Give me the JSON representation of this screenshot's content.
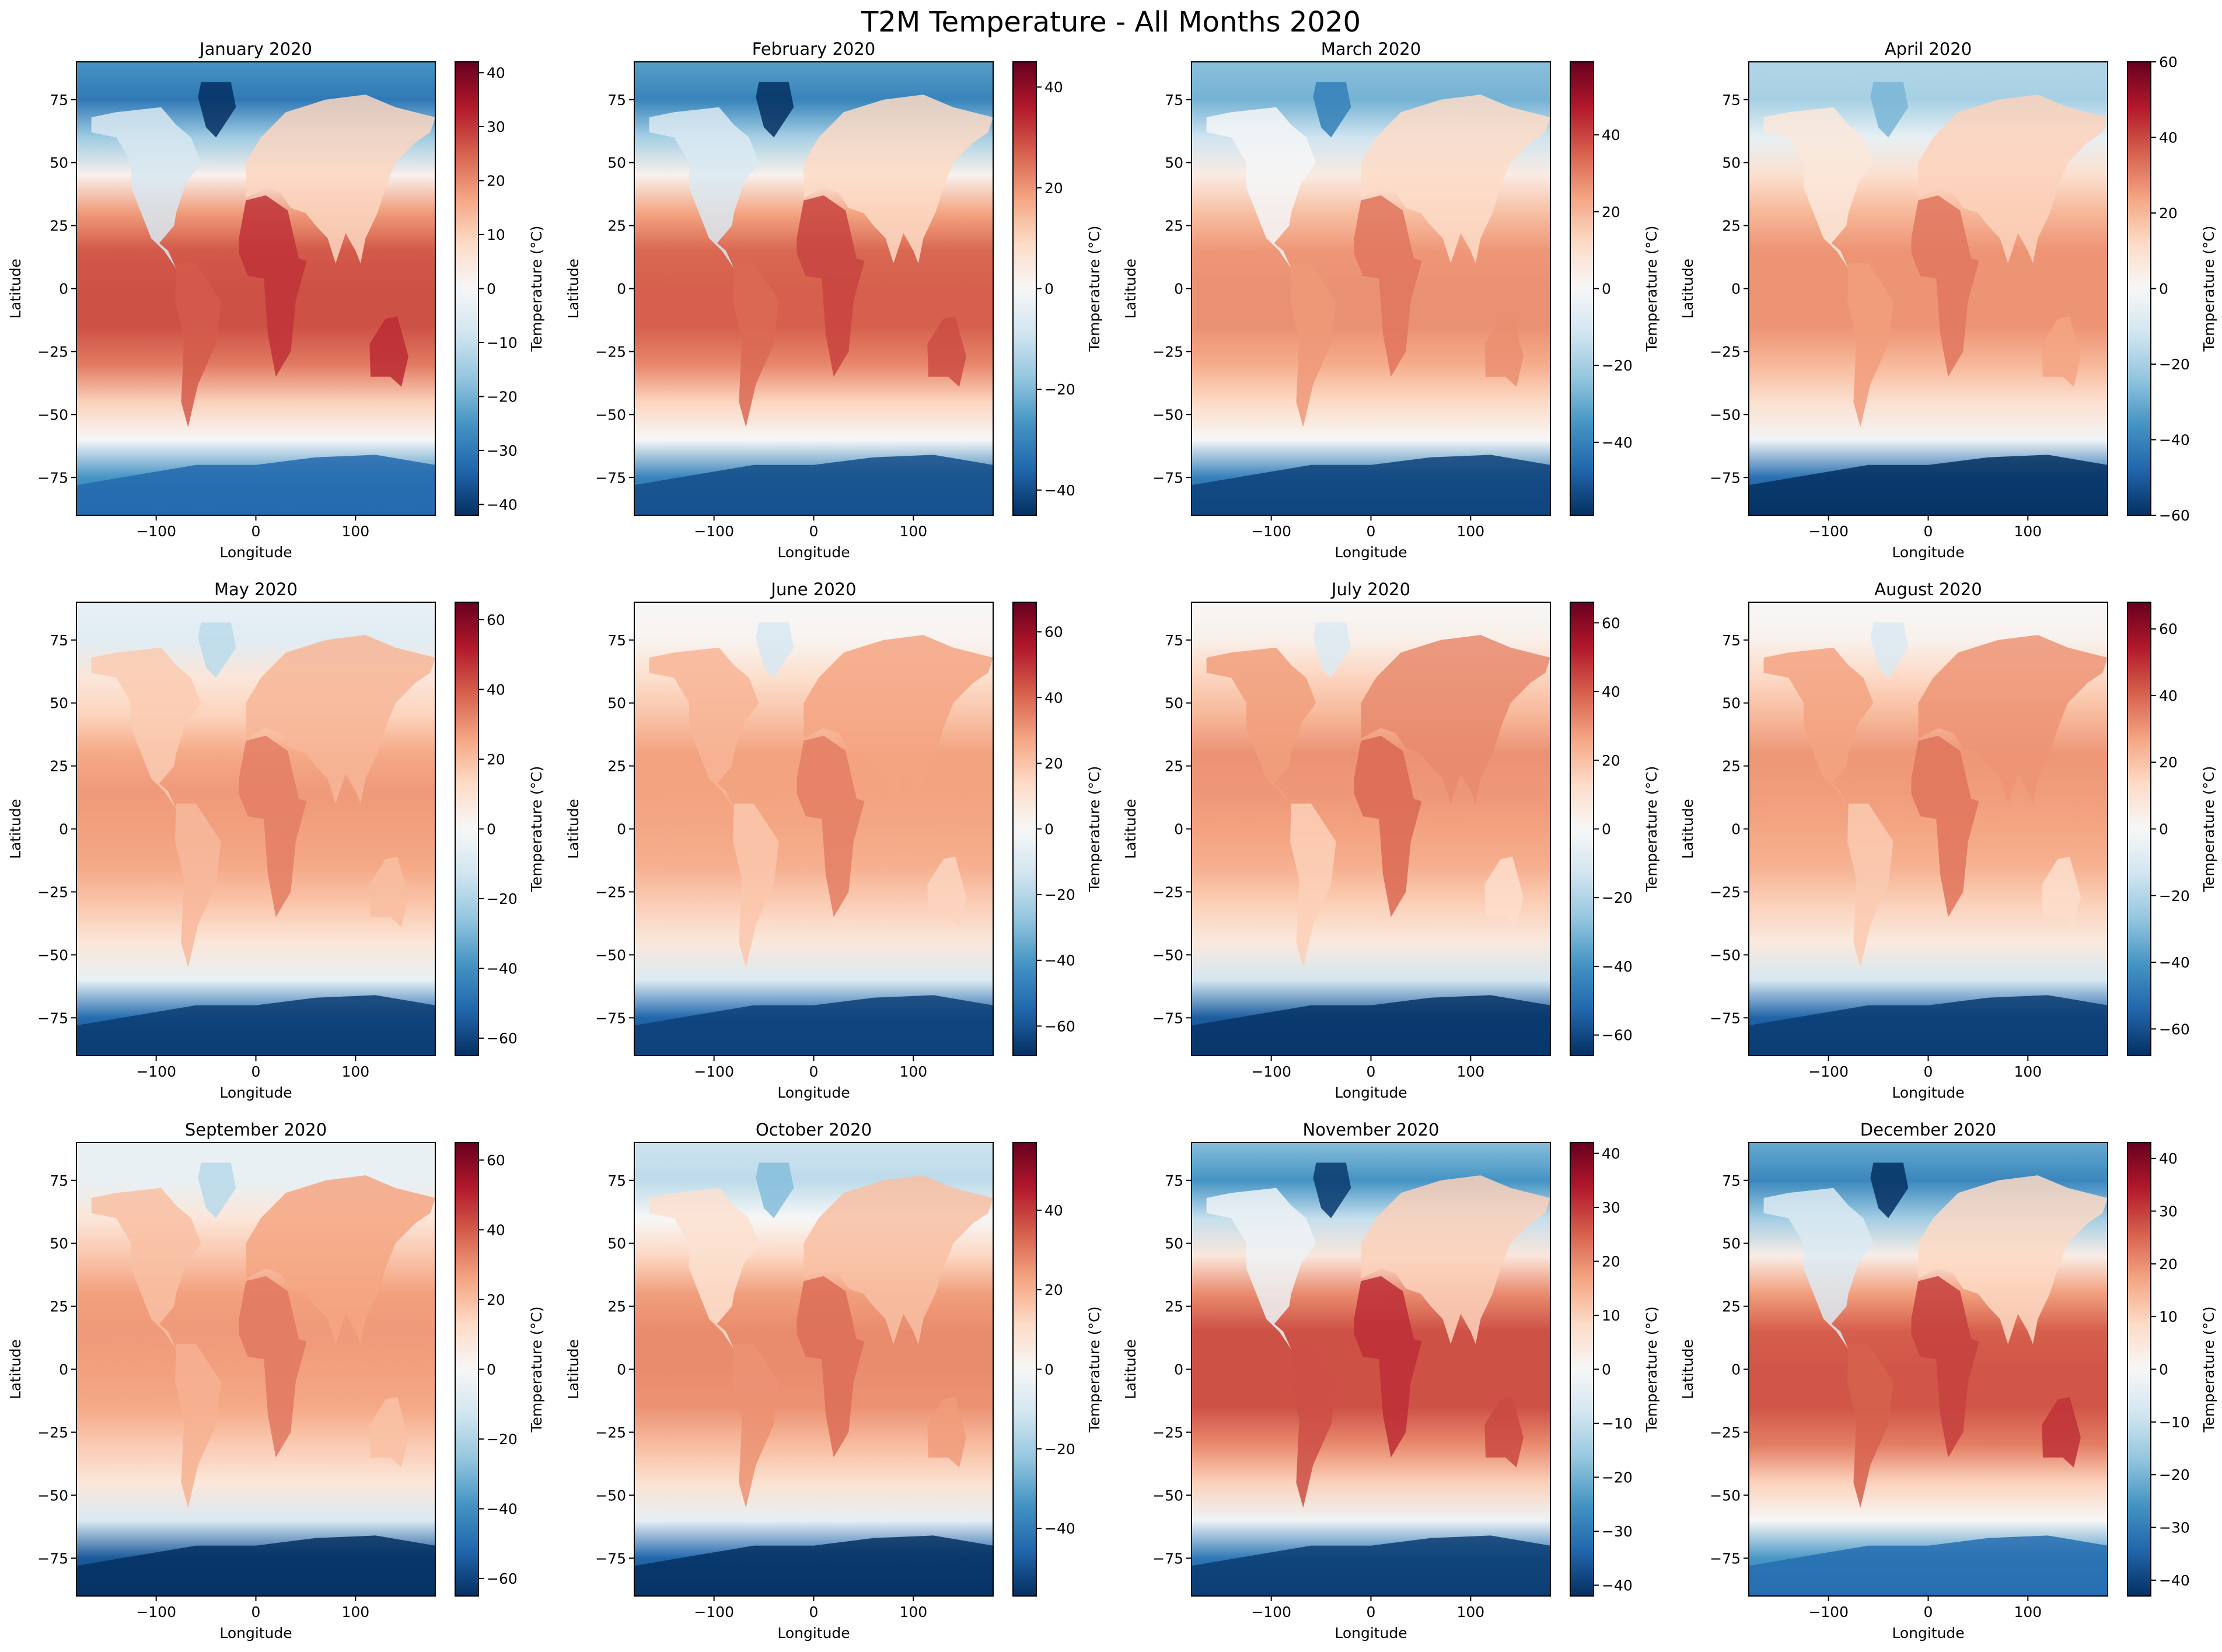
{
  "chart_data": {
    "type": "heatmap",
    "title": "T2M Temperature - All Months 2020",
    "layout": {
      "rows": 3,
      "cols": 4
    },
    "colormap": "RdBu_r",
    "xlabel": "Longitude",
    "ylabel": "Latitude",
    "xlim": [
      -180,
      180
    ],
    "ylim": [
      -90,
      90
    ],
    "xticks": [
      -100,
      0,
      100
    ],
    "yticks": [
      75,
      50,
      25,
      0,
      -25,
      -50,
      -75
    ],
    "colorbar_label": "Temperature (°C)",
    "panels": [
      {
        "title": "January 2020",
        "vmin": -42,
        "vmax": 42,
        "cbar_ticks": [
          -40,
          -30,
          -20,
          -10,
          0,
          10,
          20,
          30,
          40
        ],
        "band_means": {
          "lat": [
            90,
            75,
            60,
            45,
            30,
            15,
            0,
            -15,
            -30,
            -45,
            -60,
            -75,
            -90
          ],
          "temp": [
            -25,
            -30,
            -15,
            2,
            18,
            26,
            27,
            27,
            22,
            10,
            0,
            -25,
            -30
          ]
        }
      },
      {
        "title": "February 2020",
        "vmin": -45,
        "vmax": 45,
        "cbar_ticks": [
          -40,
          -20,
          0,
          20,
          40
        ],
        "band_means": {
          "lat": [
            90,
            75,
            60,
            45,
            30,
            15,
            0,
            -15,
            -30,
            -45,
            -60,
            -75,
            -90
          ],
          "temp": [
            -25,
            -30,
            -15,
            2,
            18,
            26,
            27,
            27,
            22,
            10,
            0,
            -30,
            -35
          ]
        }
      },
      {
        "title": "March 2020",
        "vmin": -59,
        "vmax": 59,
        "cbar_ticks": [
          -40,
          -20,
          0,
          20,
          40
        ],
        "band_means": {
          "lat": [
            90,
            75,
            60,
            45,
            30,
            15,
            0,
            -15,
            -30,
            -45,
            -60,
            -75,
            -90
          ],
          "temp": [
            -25,
            -28,
            -12,
            5,
            18,
            26,
            27,
            27,
            22,
            12,
            0,
            -40,
            -50
          ]
        }
      },
      {
        "title": "April 2020",
        "vmin": -60,
        "vmax": 60,
        "cbar_ticks": [
          -60,
          -40,
          -20,
          0,
          20,
          40,
          60
        ],
        "band_means": {
          "lat": [
            90,
            75,
            60,
            45,
            30,
            15,
            0,
            -15,
            -30,
            -45,
            -60,
            -75,
            -90
          ],
          "temp": [
            -18,
            -20,
            -5,
            10,
            20,
            27,
            27,
            27,
            20,
            10,
            -2,
            -45,
            -55
          ]
        }
      },
      {
        "title": "May 2020",
        "vmin": -65,
        "vmax": 65,
        "cbar_ticks": [
          -60,
          -40,
          -20,
          0,
          20,
          40,
          60
        ],
        "band_means": {
          "lat": [
            90,
            75,
            60,
            45,
            30,
            15,
            0,
            -15,
            -30,
            -45,
            -60,
            -75,
            -90
          ],
          "temp": [
            -5,
            -8,
            8,
            15,
            25,
            28,
            27,
            25,
            18,
            8,
            -5,
            -50,
            -60
          ]
        }
      },
      {
        "title": "June 2020",
        "vmin": -69,
        "vmax": 69,
        "cbar_ticks": [
          -60,
          -40,
          -20,
          0,
          20,
          40,
          60
        ],
        "band_means": {
          "lat": [
            90,
            75,
            60,
            45,
            30,
            15,
            0,
            -15,
            -30,
            -45,
            -60,
            -75,
            -90
          ],
          "temp": [
            0,
            2,
            12,
            20,
            28,
            28,
            27,
            25,
            17,
            8,
            -10,
            -55,
            -60
          ]
        }
      },
      {
        "title": "July 2020",
        "vmin": -66,
        "vmax": 66,
        "cbar_ticks": [
          -60,
          -40,
          -20,
          0,
          20,
          40,
          60
        ],
        "band_means": {
          "lat": [
            90,
            75,
            60,
            45,
            30,
            15,
            0,
            -15,
            -30,
            -45,
            -60,
            -75,
            -90
          ],
          "temp": [
            0,
            4,
            15,
            22,
            30,
            29,
            27,
            24,
            16,
            7,
            -12,
            -55,
            -60
          ]
        }
      },
      {
        "title": "August 2020",
        "vmin": -68,
        "vmax": 68,
        "cbar_ticks": [
          -60,
          -40,
          -20,
          0,
          20,
          40,
          60
        ],
        "band_means": {
          "lat": [
            90,
            75,
            60,
            45,
            30,
            15,
            0,
            -15,
            -30,
            -45,
            -60,
            -75,
            -90
          ],
          "temp": [
            0,
            3,
            14,
            22,
            30,
            29,
            27,
            24,
            16,
            7,
            -12,
            -55,
            -62
          ]
        }
      },
      {
        "title": "September 2020",
        "vmin": -65,
        "vmax": 65,
        "cbar_ticks": [
          -60,
          -40,
          -20,
          0,
          20,
          40,
          60
        ],
        "band_means": {
          "lat": [
            90,
            75,
            60,
            45,
            30,
            15,
            0,
            -15,
            -30,
            -45,
            -60,
            -75,
            -90
          ],
          "temp": [
            -5,
            -5,
            8,
            18,
            27,
            28,
            27,
            25,
            17,
            8,
            -10,
            -55,
            -60
          ]
        }
      },
      {
        "title": "October 2020",
        "vmin": -57,
        "vmax": 57,
        "cbar_ticks": [
          -40,
          -20,
          0,
          20,
          40
        ],
        "band_means": {
          "lat": [
            90,
            75,
            60,
            45,
            30,
            15,
            0,
            -15,
            -30,
            -45,
            -60,
            -75,
            -90
          ],
          "temp": [
            -12,
            -15,
            0,
            12,
            24,
            27,
            27,
            26,
            18,
            9,
            -5,
            -45,
            -52
          ]
        }
      },
      {
        "title": "November 2020",
        "vmin": -42,
        "vmax": 42,
        "cbar_ticks": [
          -40,
          -30,
          -20,
          -10,
          0,
          10,
          20,
          30,
          40
        ],
        "band_means": {
          "lat": [
            90,
            75,
            60,
            45,
            30,
            15,
            0,
            -15,
            -30,
            -45,
            -60,
            -75,
            -90
          ],
          "temp": [
            -18,
            -25,
            -10,
            5,
            20,
            27,
            27,
            27,
            20,
            10,
            -2,
            -30,
            -38
          ]
        }
      },
      {
        "title": "December 2020",
        "vmin": -43,
        "vmax": 43,
        "cbar_ticks": [
          -40,
          -30,
          -20,
          -10,
          0,
          10,
          20,
          30,
          40
        ],
        "band_means": {
          "lat": [
            90,
            75,
            60,
            45,
            30,
            15,
            0,
            -15,
            -30,
            -45,
            -60,
            -75,
            -90
          ],
          "temp": [
            -22,
            -28,
            -15,
            3,
            18,
            26,
            27,
            27,
            22,
            10,
            0,
            -25,
            -32
          ]
        }
      }
    ]
  }
}
